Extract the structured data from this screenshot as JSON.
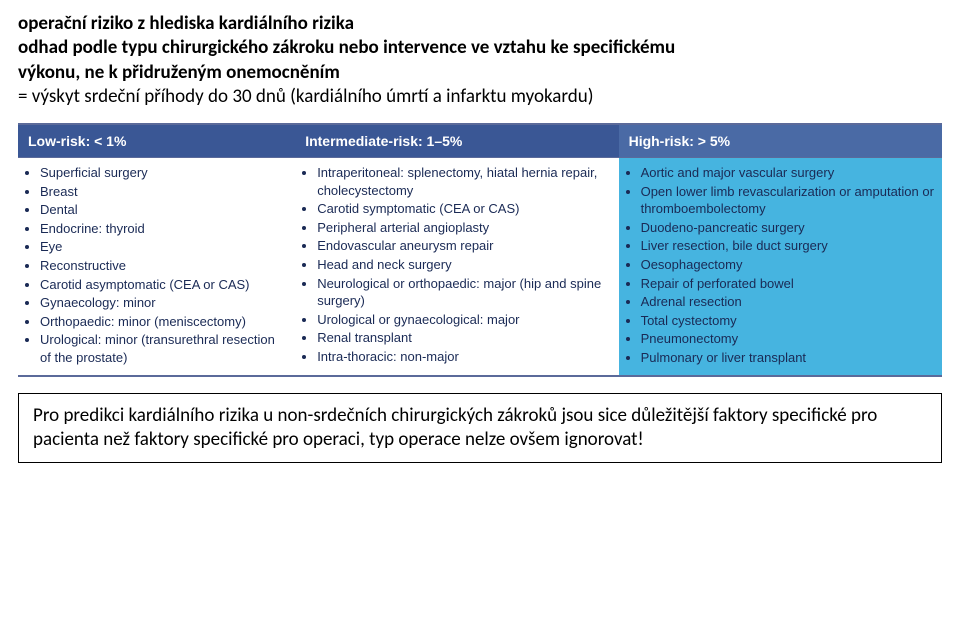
{
  "intro": {
    "line1": "operační riziko z hlediska kardiálního rizika",
    "line2": "odhad podle typu chirurgického zákroku nebo intervence ve vztahu ke specifickému",
    "line3": " výkonu, ne k přidruženým onemocněním",
    "line4": "= výskyt srdeční příhody do 30 dnů (kardiálního úmrtí a infarktu myokardu)"
  },
  "table": {
    "headers": [
      "Low-risk: < 1%",
      "Intermediate-risk: 1–5%",
      "High-risk: > 5%"
    ],
    "cols": [
      [
        "Superficial surgery",
        "Breast",
        "Dental",
        "Endocrine: thyroid",
        "Eye",
        "Reconstructive",
        "Carotid asymptomatic (CEA or CAS)",
        "Gynaecology: minor",
        "Orthopaedic: minor (meniscectomy)",
        "Urological: minor (transurethral resection of the prostate)"
      ],
      [
        "Intraperitoneal: splenectomy, hiatal hernia repair, cholecystectomy",
        "Carotid symptomatic (CEA or CAS)",
        "Peripheral arterial angioplasty",
        "Endovascular aneurysm repair",
        "Head and neck surgery",
        "Neurological or orthopaedic: major (hip and spine surgery)",
        "Urological or gynaecological: major",
        "Renal transplant",
        "Intra-thoracic: non-major"
      ],
      [
        "Aortic and major vascular surgery",
        "Open lower limb revascularization or amputation or thromboembolectomy",
        "Duodeno-pancreatic surgery",
        "Liver resection, bile duct surgery",
        "Oesophagectomy",
        "Repair of perforated bowel",
        "Adrenal resection",
        "Total cystectomy",
        "Pneumonectomy",
        "Pulmonary or liver transplant"
      ]
    ]
  },
  "box": {
    "text": "Pro predikci kardiálního rizika u non-srdečních chirurgických zákroků jsou sice důležitější faktory specifické pro pacienta než faktory specifické pro operaci, typ operace nelze ovšem ignorovat!"
  }
}
